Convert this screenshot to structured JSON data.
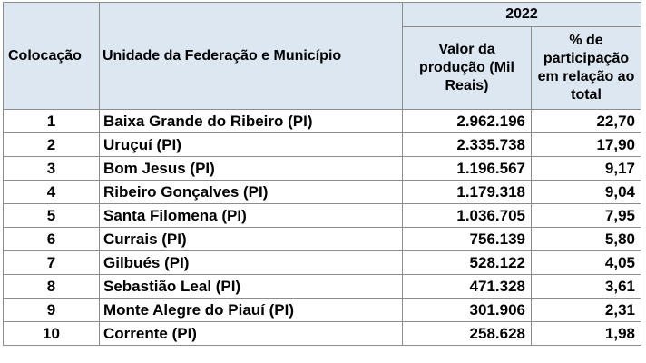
{
  "table": {
    "year": "2022",
    "headers": {
      "rank": "Colocação",
      "unit": "Unidade da Federação e Município",
      "value": "Valor da produção (Mil Reais)",
      "share": "% de participação em relação ao total"
    },
    "rows": [
      {
        "rank": "1",
        "unit": "Baixa Grande do Ribeiro (PI)",
        "value": "2.962.196",
        "share": "22,70"
      },
      {
        "rank": "2",
        "unit": "Uruçuí (PI)",
        "value": "2.335.738",
        "share": "17,90"
      },
      {
        "rank": "3",
        "unit": "Bom Jesus (PI)",
        "value": "1.196.567",
        "share": "9,17"
      },
      {
        "rank": "4",
        "unit": "Ribeiro Gonçalves (PI)",
        "value": "1.179.318",
        "share": "9,04"
      },
      {
        "rank": "5",
        "unit": "Santa Filomena (PI)",
        "value": "1.036.705",
        "share": "7,95"
      },
      {
        "rank": "6",
        "unit": "Currais (PI)",
        "value": "756.139",
        "share": "5,80"
      },
      {
        "rank": "7",
        "unit": "Gilbués (PI)",
        "value": "528.122",
        "share": "4,05"
      },
      {
        "rank": "8",
        "unit": "Sebastião Leal (PI)",
        "value": "471.328",
        "share": "3,61"
      },
      {
        "rank": "9",
        "unit": "Monte Alegre do Piauí (PI)",
        "value": "301.906",
        "share": "2,31"
      },
      {
        "rank": "10",
        "unit": "Corrente (PI)",
        "value": "258.628",
        "share": "1,98"
      }
    ]
  }
}
